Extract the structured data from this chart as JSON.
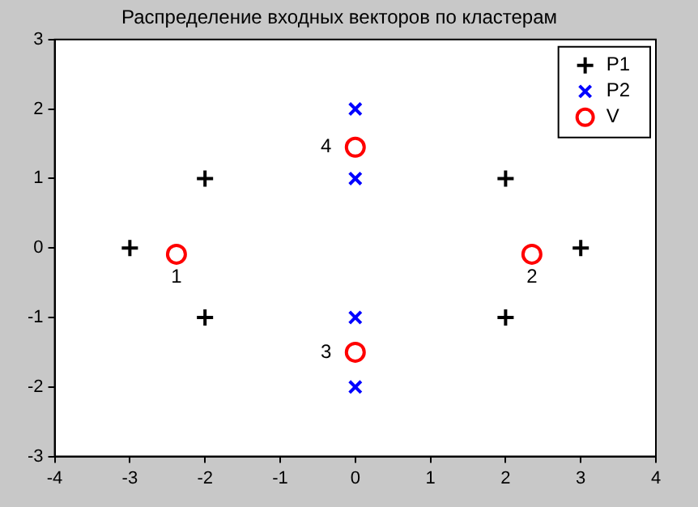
{
  "chart_data": {
    "type": "scatter",
    "title": "Распределение входных векторов по кластерам",
    "series": [
      {
        "name": "P1",
        "color": "#000000",
        "marker": "cross",
        "x": [
          -3,
          -2,
          -2,
          2,
          2,
          3
        ],
        "values": [
          0,
          1,
          -1,
          1,
          -1,
          0
        ]
      },
      {
        "name": "P2",
        "color": "#0000ff",
        "marker": "x",
        "x": [
          0,
          0,
          0,
          0
        ],
        "values": [
          2,
          1,
          -1,
          -2
        ]
      },
      {
        "name": "V",
        "color": "#ff0000",
        "marker": "circle",
        "x": [
          -2.38,
          2.35,
          0,
          0
        ],
        "values": [
          -0.09,
          -0.09,
          -1.5,
          1.45
        ]
      }
    ],
    "annotations": [
      {
        "text": "1",
        "x": -2.38,
        "y": -0.09
      },
      {
        "text": "2",
        "x": 2.35,
        "y": -0.09
      },
      {
        "text": "3",
        "x": 0,
        "y": -1.5
      },
      {
        "text": "4",
        "x": 0,
        "y": 1.45
      }
    ],
    "xlim": [
      -4,
      4
    ],
    "xticks": [
      -4,
      -3,
      -2,
      -1,
      0,
      1,
      2,
      3,
      4
    ],
    "ylim": [
      -3,
      3
    ],
    "yticks": [
      -3,
      -2,
      -1,
      0,
      1,
      2,
      3
    ],
    "grid": false,
    "legend": "top right"
  }
}
